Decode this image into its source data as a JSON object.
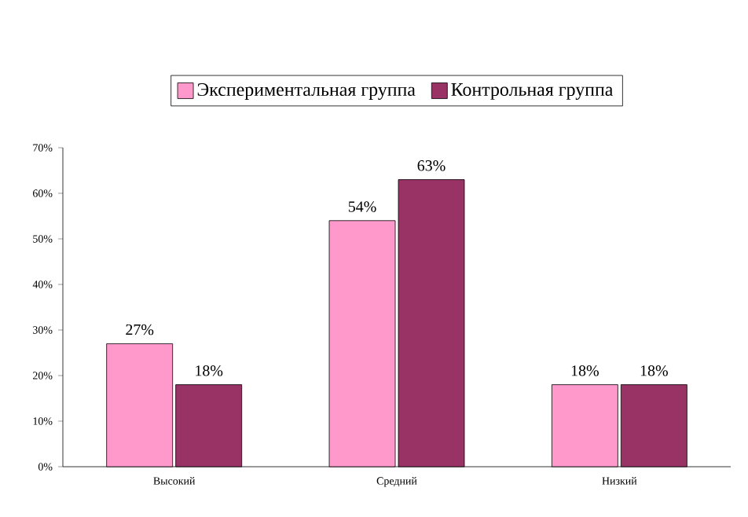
{
  "chart_data": {
    "type": "bar",
    "categories": [
      "Высокий",
      "Средний",
      "Низкий"
    ],
    "series": [
      {
        "name": "Экспериментальная группа",
        "color": "#ff99cc",
        "values": [
          27,
          54,
          18
        ],
        "value_labels": [
          "27%",
          "54%",
          "18%"
        ]
      },
      {
        "name": "Контрольная группа",
        "color": "#993366",
        "values": [
          18,
          63,
          18
        ],
        "value_labels": [
          "18%",
          "63%",
          "18%"
        ]
      }
    ],
    "ylim": [
      0,
      70
    ],
    "yticks": [
      {
        "value": 0,
        "label": "0%"
      },
      {
        "value": 10,
        "label": "10%"
      },
      {
        "value": 20,
        "label": "20%"
      },
      {
        "value": 30,
        "label": "30%"
      },
      {
        "value": 40,
        "label": "40%"
      },
      {
        "value": 50,
        "label": "50%"
      },
      {
        "value": 60,
        "label": "60%"
      },
      {
        "value": 70,
        "label": "70%"
      }
    ],
    "grid": false,
    "legend": "top"
  }
}
